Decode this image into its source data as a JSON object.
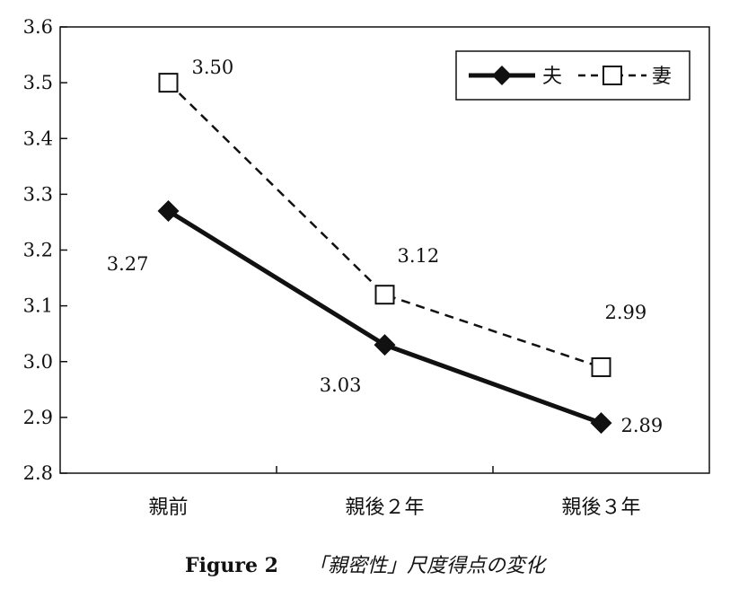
{
  "chart_data": {
    "type": "line",
    "categories": [
      "親前",
      "親後２年",
      "親後３年"
    ],
    "series": [
      {
        "name": "夫",
        "values": [
          3.27,
          3.03,
          2.89
        ],
        "value_labels": [
          "3.27",
          "3.03",
          "2.89"
        ],
        "line_style": "solid",
        "marker": "filled-diamond",
        "color": "#111111"
      },
      {
        "name": "妻",
        "values": [
          3.5,
          3.12,
          2.99
        ],
        "value_labels": [
          "3.50",
          "3.12",
          "2.99"
        ],
        "line_style": "dashed",
        "marker": "open-square",
        "color": "#111111"
      }
    ],
    "ylim": [
      2.8,
      3.6
    ],
    "yticks": [
      "2.8",
      "2.9",
      "3.0",
      "3.1",
      "3.2",
      "3.3",
      "3.4",
      "3.5",
      "3.6"
    ],
    "grid": false,
    "legend_position": "top-right"
  },
  "caption": {
    "figure_number": "Figure 2",
    "title": "「親密性」尺度得点の変化"
  }
}
